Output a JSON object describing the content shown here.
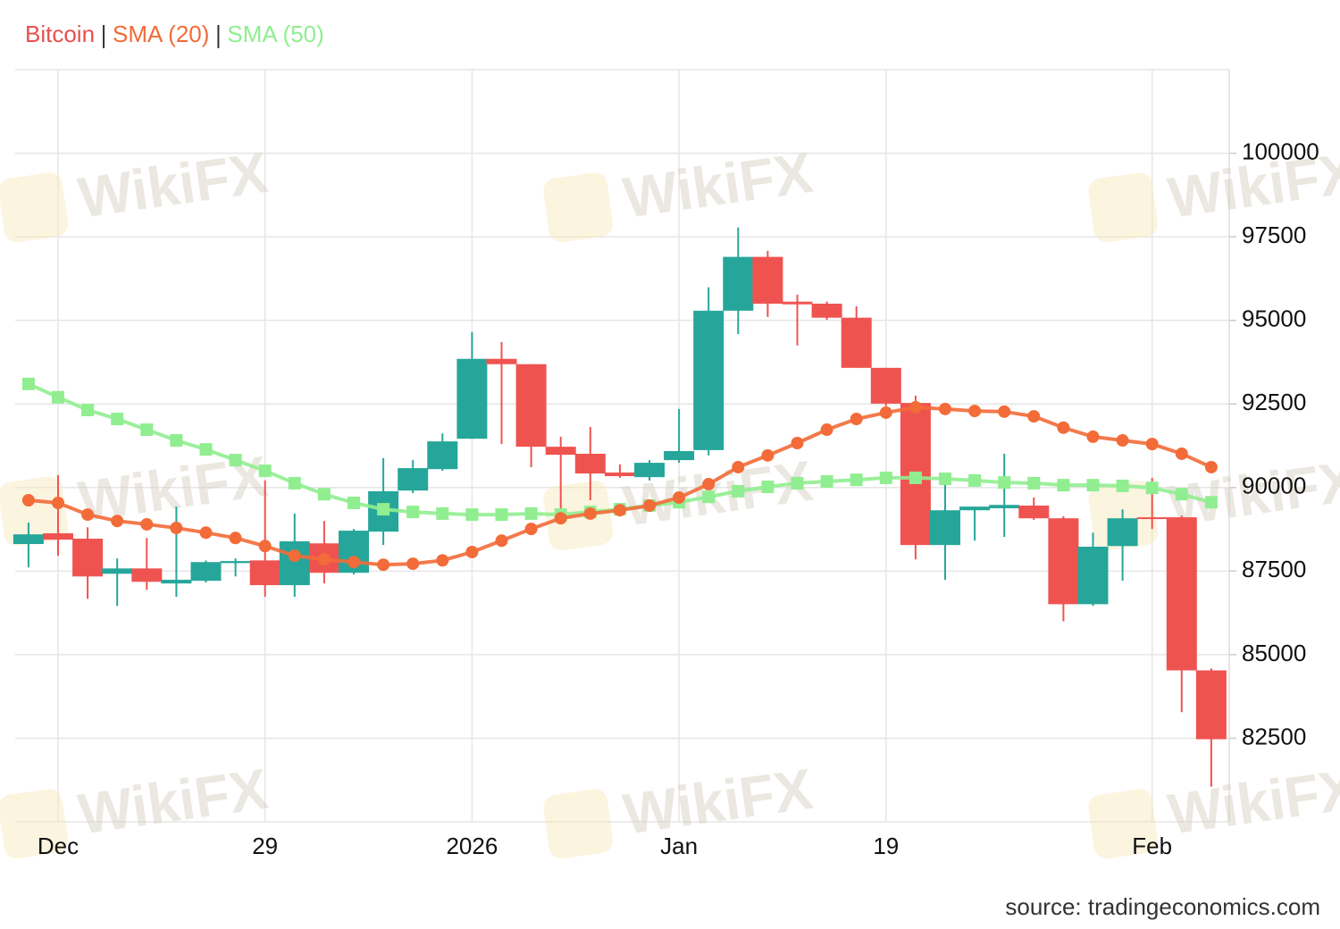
{
  "chart_data": {
    "type": "candlestick",
    "watermark": "WikiFX",
    "source": "source: tradingeconomics.com",
    "categories": [
      null,
      "Dec",
      null,
      null,
      null,
      null,
      null,
      null,
      "29",
      null,
      null,
      null,
      null,
      null,
      null,
      "2026",
      null,
      null,
      null,
      null,
      null,
      null,
      "Jan",
      null,
      null,
      null,
      null,
      null,
      null,
      "19",
      null,
      null,
      null,
      null,
      null,
      null,
      null,
      null,
      "Feb",
      null,
      null
    ],
    "ylim": [
      80000,
      102500
    ],
    "yticks": [
      82500,
      85000,
      87500,
      90000,
      92500,
      95000,
      97500,
      100000
    ],
    "grid": true,
    "series": [
      {
        "name": "Bitcoin",
        "color": "#e8504d",
        "up_color": "#26a69a",
        "down_color": "#ef5350",
        "open": [
          88310,
          88630,
          88470,
          87420,
          87580,
          87130,
          87210,
          87740,
          87820,
          87080,
          88330,
          87450,
          88680,
          89910,
          90550,
          91460,
          93850,
          93690,
          91220,
          91010,
          90450,
          90310,
          90820,
          91120,
          95290,
          96900,
          95560,
          95500,
          95080,
          93580,
          92530,
          88280,
          89320,
          89380,
          89460,
          89080,
          86510,
          88250,
          89110,
          89110,
          84530
        ],
        "high": [
          88950,
          90370,
          88810,
          87880,
          88490,
          89430,
          87820,
          87880,
          90210,
          89220,
          89000,
          88760,
          90880,
          90820,
          91620,
          94650,
          94350,
          93690,
          91520,
          91810,
          90690,
          90820,
          92350,
          95990,
          97780,
          97080,
          95770,
          95560,
          95420,
          93580,
          92750,
          90370,
          89430,
          91010,
          89700,
          89140,
          88650,
          89350,
          90290,
          89160,
          84590
        ],
        "low": [
          87610,
          87960,
          86670,
          86460,
          86940,
          86730,
          87160,
          87340,
          86730,
          86730,
          87130,
          87400,
          88280,
          89830,
          90500,
          91460,
          91300,
          90610,
          89080,
          89620,
          90290,
          90210,
          90740,
          90960,
          94590,
          95100,
          94250,
          95020,
          93580,
          92430,
          87850,
          87240,
          88410,
          88520,
          89030,
          86000,
          86460,
          87210,
          88760,
          83280,
          81050
        ],
        "close": [
          88600,
          88440,
          87340,
          87580,
          87180,
          87240,
          87770,
          87800,
          87080,
          88390,
          87450,
          88710,
          89890,
          90580,
          91380,
          93850,
          93690,
          91220,
          90980,
          90420,
          90340,
          90740,
          91090,
          95290,
          96900,
          95500,
          95480,
          95080,
          93580,
          92510,
          88280,
          89320,
          89430,
          89480,
          89080,
          86510,
          88230,
          89080,
          89060,
          84530,
          82470
        ]
      },
      {
        "name": "SMA (20)",
        "color": "#f26b38",
        "values": [
          89620,
          89540,
          89190,
          89000,
          88900,
          88790,
          88650,
          88490,
          88250,
          87960,
          87850,
          87770,
          87690,
          87720,
          87820,
          88070,
          88410,
          88760,
          89080,
          89220,
          89320,
          89460,
          89700,
          90100,
          90610,
          90960,
          91330,
          91730,
          92050,
          92240,
          92400,
          92350,
          92290,
          92270,
          92130,
          91790,
          91520,
          91410,
          91300,
          91010,
          90610
        ]
      },
      {
        "name": "SMA (50)",
        "color": "#90ee90",
        "values": [
          93100,
          92700,
          92320,
          92050,
          91730,
          91410,
          91140,
          90820,
          90500,
          90130,
          89800,
          89540,
          89350,
          89270,
          89220,
          89190,
          89190,
          89220,
          89190,
          89270,
          89350,
          89460,
          89560,
          89720,
          89890,
          90020,
          90130,
          90180,
          90230,
          90290,
          90290,
          90260,
          90210,
          90150,
          90130,
          90070,
          90070,
          90050,
          89990,
          89800,
          89560
        ]
      }
    ]
  }
}
